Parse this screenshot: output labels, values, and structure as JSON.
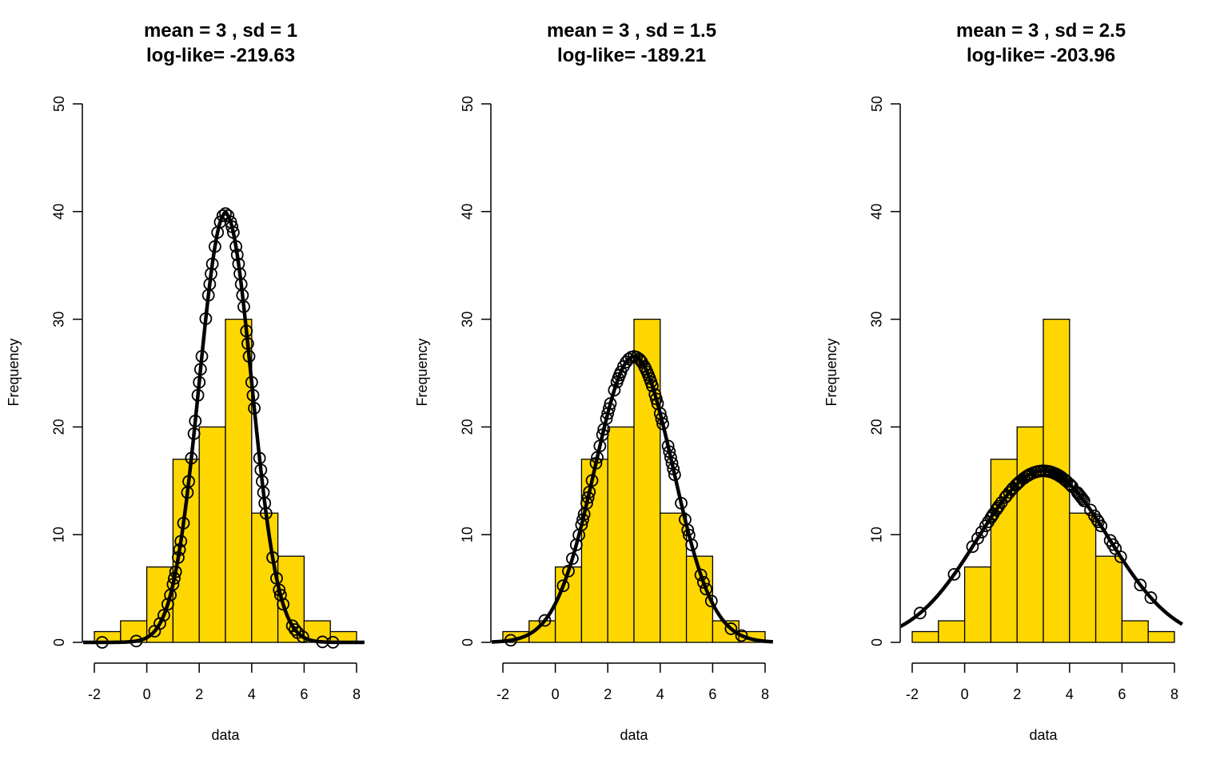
{
  "colors": {
    "bar_fill": "#FFD700",
    "bar_stroke": "#000000",
    "curve": "#000000",
    "points": "#000000"
  },
  "histogram": {
    "breaks": [
      -2,
      -1,
      0,
      1,
      2,
      3,
      4,
      5,
      6,
      7,
      8
    ],
    "counts": [
      1,
      2,
      7,
      17,
      20,
      30,
      12,
      8,
      2,
      1
    ]
  },
  "data_points": [
    -1.7,
    -0.4,
    0.3,
    0.5,
    0.65,
    0.8,
    0.9,
    1.0,
    1.05,
    1.1,
    1.2,
    1.25,
    1.3,
    1.4,
    1.55,
    1.6,
    1.7,
    1.8,
    1.85,
    1.95,
    2.0,
    2.05,
    2.1,
    2.25,
    2.35,
    2.4,
    2.45,
    2.5,
    2.6,
    2.7,
    2.8,
    2.9,
    3.0,
    3.1,
    3.2,
    3.25,
    3.3,
    3.4,
    3.45,
    3.5,
    3.55,
    3.6,
    3.65,
    3.7,
    3.8,
    3.85,
    3.9,
    4.0,
    4.05,
    4.1,
    4.3,
    4.35,
    4.4,
    4.45,
    4.5,
    4.55,
    4.8,
    4.95,
    5.05,
    5.1,
    5.2,
    5.55,
    5.65,
    5.75,
    5.95,
    6.7,
    7.1
  ],
  "scale_factor": 99.8,
  "chart_data": [
    {
      "type": "bar",
      "title_line1": "mean =  3 , sd = 1",
      "title_line2": "log-like= -219.63",
      "xlabel": "data",
      "ylabel": "Frequency",
      "mean": 3,
      "sd": 1,
      "xlim": [
        -2,
        8
      ],
      "ylim": [
        0,
        50
      ],
      "xticks": [
        "-2",
        "0",
        "2",
        "4",
        "6",
        "8"
      ],
      "yticks": [
        "0",
        "10",
        "20",
        "30",
        "40",
        "50"
      ]
    },
    {
      "type": "bar",
      "title_line1": "mean =  3 , sd = 1.5",
      "title_line2": "log-like= -189.21",
      "xlabel": "data",
      "ylabel": "Frequency",
      "mean": 3,
      "sd": 1.5,
      "xlim": [
        -2,
        8
      ],
      "ylim": [
        0,
        50
      ],
      "xticks": [
        "-2",
        "0",
        "2",
        "4",
        "6",
        "8"
      ],
      "yticks": [
        "0",
        "10",
        "20",
        "30",
        "40",
        "50"
      ]
    },
    {
      "type": "bar",
      "title_line1": "mean =  3 , sd = 2.5",
      "title_line2": "log-like= -203.96",
      "xlabel": "data",
      "ylabel": "Frequency",
      "mean": 3,
      "sd": 2.5,
      "xlim": [
        -2,
        8
      ],
      "ylim": [
        0,
        50
      ],
      "xticks": [
        "-2",
        "0",
        "2",
        "4",
        "6",
        "8"
      ],
      "yticks": [
        "0",
        "10",
        "20",
        "30",
        "40",
        "50"
      ]
    }
  ]
}
